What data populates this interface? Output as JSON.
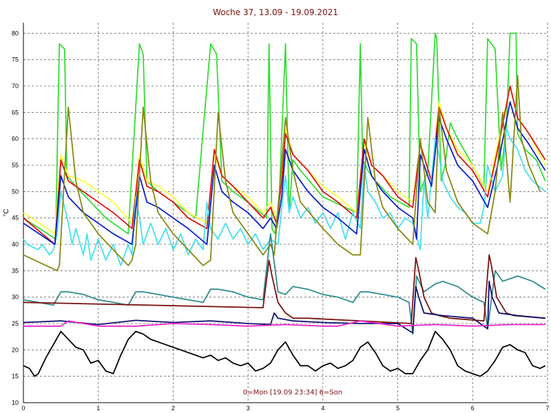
{
  "chart_data": {
    "type": "line",
    "title": "Woche 37, 13.09 - 19.09.2021",
    "ylabel": "°C",
    "footer": "0=Mon [19.09 23:34] 6=Son",
    "xlim": [
      0,
      7
    ],
    "ylim": [
      10,
      82
    ],
    "x_ticks": [
      "0",
      "1",
      "2",
      "3",
      "4",
      "5",
      "6",
      "7"
    ],
    "y_ticks": [
      "10",
      "15",
      "20",
      "25",
      "30",
      "35",
      "40",
      "45",
      "50",
      "55",
      "60",
      "65",
      "70",
      "75",
      "80"
    ],
    "grid": true,
    "series": [
      {
        "color": "#33dd33",
        "x": [
          0,
          0.43,
          0.48,
          0.55,
          0.58,
          0.7,
          0.9,
          1.1,
          1.4,
          1.55,
          1.6,
          1.65,
          1.8,
          2.0,
          2.3,
          2.5,
          2.58,
          2.65,
          2.8,
          3.0,
          3.25,
          3.28,
          3.32,
          3.36,
          3.42,
          3.5,
          3.55,
          3.6,
          3.7,
          4.0,
          4.45,
          4.5,
          4.53,
          4.6,
          4.7,
          4.9,
          5.15,
          5.18,
          5.25,
          5.3,
          5.4,
          5.5,
          5.52,
          5.58,
          5.63,
          5.7,
          5.8,
          6.0,
          6.15,
          6.2,
          6.3,
          6.38,
          6.45,
          6.5,
          6.58,
          6.6,
          6.7,
          6.85,
          6.97
        ],
        "values": [
          45,
          41,
          78,
          77,
          53,
          51,
          48,
          45,
          42,
          78,
          76,
          52,
          50,
          48,
          45,
          78,
          76,
          52,
          50,
          48,
          45,
          78,
          43,
          42,
          50,
          78,
          46,
          56,
          54,
          49,
          46,
          78,
          56,
          54,
          52,
          49,
          47,
          79,
          78,
          50,
          54,
          80,
          79,
          52,
          55,
          63,
          60,
          55,
          51,
          79,
          77,
          54,
          62,
          80,
          80,
          61,
          58,
          56,
          52
        ]
      },
      {
        "color": "#ffff33",
        "x": [
          0,
          0.42,
          0.5,
          0.6,
          0.8,
          1.0,
          1.2,
          1.45,
          1.55,
          1.65,
          1.8,
          2.0,
          2.2,
          2.45,
          2.55,
          2.65,
          2.8,
          3.0,
          3.2,
          3.3,
          3.38,
          3.45,
          3.5,
          3.6,
          3.8,
          4.0,
          4.2,
          4.45,
          4.55,
          4.65,
          4.8,
          5.0,
          5.2,
          5.3,
          5.45,
          5.55,
          5.65,
          5.8,
          6.0,
          6.2,
          6.35,
          6.5,
          6.6,
          6.75,
          6.97
        ],
        "values": [
          46,
          42,
          57,
          53,
          52,
          50,
          48,
          44,
          57,
          52,
          51,
          49,
          46,
          44,
          57,
          53,
          51,
          49,
          46,
          48,
          45,
          52,
          62,
          57,
          54,
          51,
          49,
          46,
          59,
          55,
          53,
          50,
          48,
          59,
          52,
          67,
          62,
          58,
          55,
          50,
          60,
          70,
          64,
          61,
          55
        ]
      },
      {
        "color": "#dd1111",
        "x": [
          0,
          0.42,
          0.5,
          0.6,
          0.8,
          1.0,
          1.2,
          1.45,
          1.55,
          1.65,
          1.8,
          2.0,
          2.2,
          2.45,
          2.55,
          2.65,
          2.8,
          3.0,
          3.2,
          3.3,
          3.38,
          3.45,
          3.5,
          3.6,
          3.8,
          4.0,
          4.2,
          4.45,
          4.55,
          4.65,
          4.8,
          5.0,
          5.2,
          5.3,
          5.45,
          5.55,
          5.65,
          5.8,
          6.0,
          6.2,
          6.35,
          6.5,
          6.6,
          6.75,
          6.97
        ],
        "values": [
          45,
          40,
          56,
          52,
          50,
          48,
          46,
          43,
          56,
          51,
          50,
          48,
          45,
          43,
          58,
          53,
          51,
          48,
          45,
          47,
          44,
          52,
          61,
          57,
          54,
          50,
          48,
          45,
          60,
          55,
          53,
          49,
          47,
          59,
          52,
          66,
          62,
          57,
          54,
          49,
          59,
          70,
          64,
          61,
          56
        ]
      },
      {
        "color": "#44e0f0",
        "x": [
          0,
          0.05,
          0.2,
          0.25,
          0.35,
          0.4,
          0.45,
          0.5,
          0.6,
          0.65,
          0.7,
          0.8,
          0.85,
          0.9,
          1.0,
          1.1,
          1.2,
          1.3,
          1.4,
          1.45,
          1.5,
          1.55,
          1.6,
          1.7,
          1.8,
          1.9,
          2.0,
          2.1,
          2.2,
          2.3,
          2.4,
          2.45,
          2.5,
          2.6,
          2.7,
          2.8,
          2.9,
          3.0,
          3.1,
          3.2,
          3.3,
          3.4,
          3.45,
          3.5,
          3.55,
          3.6,
          3.7,
          3.8,
          3.9,
          4.0,
          4.1,
          4.2,
          4.3,
          4.4,
          4.5,
          4.55,
          4.6,
          4.7,
          4.8,
          4.9,
          5.0,
          5.1,
          5.2,
          5.3,
          5.35,
          5.4,
          5.5,
          5.55,
          5.6,
          5.7,
          5.8,
          5.9,
          6.0,
          6.1,
          6.15,
          6.2,
          6.3,
          6.4,
          6.45,
          6.5,
          6.6,
          6.7,
          6.8,
          6.97
        ],
        "values": [
          41,
          40,
          39,
          40,
          38,
          39,
          42,
          50,
          44,
          40,
          43,
          38,
          42,
          37,
          41,
          37,
          40,
          36,
          40,
          38,
          49,
          45,
          40,
          44,
          40,
          43,
          39,
          42,
          38,
          41,
          39,
          48,
          43,
          41,
          44,
          41,
          43,
          40,
          42,
          39,
          41,
          40,
          47,
          53,
          46,
          49,
          45,
          47,
          44,
          46,
          43,
          46,
          41,
          46,
          43,
          55,
          50,
          48,
          45,
          46,
          43,
          45,
          44,
          39,
          52,
          45,
          60,
          57,
          52,
          49,
          47,
          46,
          44,
          44,
          47,
          55,
          50,
          53,
          62,
          60,
          58,
          54,
          52,
          50
        ]
      },
      {
        "color": "#0a1fcc",
        "x": [
          0,
          0.42,
          0.5,
          0.6,
          0.8,
          1.0,
          1.2,
          1.45,
          1.55,
          1.65,
          1.8,
          2.0,
          2.2,
          2.45,
          2.55,
          2.65,
          2.8,
          3.0,
          3.2,
          3.3,
          3.38,
          3.45,
          3.5,
          3.6,
          3.8,
          4.0,
          4.2,
          4.45,
          4.55,
          4.65,
          4.8,
          5.0,
          5.2,
          5.25,
          5.3,
          5.45,
          5.55,
          5.65,
          5.8,
          6.0,
          6.2,
          6.35,
          6.5,
          6.6,
          6.75,
          6.97
        ],
        "values": [
          44,
          40,
          53,
          49,
          46,
          44,
          42,
          40,
          53,
          48,
          47,
          45,
          43,
          40,
          55,
          50,
          48,
          46,
          43,
          45,
          43,
          49,
          58,
          54,
          50,
          47,
          45,
          42,
          58,
          53,
          50,
          47,
          45,
          41,
          57,
          51,
          64,
          60,
          55,
          52,
          47,
          56,
          67,
          62,
          59,
          54
        ]
      },
      {
        "color": "#888811",
        "x": [
          0,
          0.45,
          0.48,
          0.6,
          0.7,
          0.8,
          1.0,
          1.2,
          1.4,
          1.45,
          1.5,
          1.6,
          1.7,
          1.8,
          2.0,
          2.2,
          2.4,
          2.5,
          2.6,
          2.7,
          2.8,
          3.0,
          3.2,
          3.3,
          3.35,
          3.5,
          3.6,
          3.7,
          4.0,
          4.2,
          4.4,
          4.5,
          4.6,
          4.7,
          4.8,
          5.0,
          5.2,
          5.3,
          5.4,
          5.5,
          5.55,
          5.65,
          5.8,
          6.0,
          6.2,
          6.3,
          6.4,
          6.5,
          6.6,
          6.65,
          6.75,
          6.9
        ],
        "values": [
          38,
          35,
          36,
          66,
          52,
          46,
          42,
          39,
          36,
          37,
          40,
          66,
          52,
          46,
          42,
          39,
          36,
          37,
          65,
          52,
          46,
          42,
          38,
          40,
          38,
          64,
          54,
          48,
          43,
          40,
          38,
          38,
          64,
          52,
          47,
          43,
          40,
          60,
          48,
          46,
          66,
          54,
          48,
          44,
          42,
          50,
          65,
          48,
          72,
          60,
          55,
          50
        ]
      },
      {
        "color": "#2e8b8b",
        "x": [
          0,
          0.2,
          0.4,
          0.5,
          0.6,
          0.8,
          1.0,
          1.2,
          1.4,
          1.5,
          1.6,
          1.8,
          2.0,
          2.2,
          2.4,
          2.5,
          2.6,
          2.8,
          3.0,
          3.2,
          3.3,
          3.4,
          3.5,
          3.6,
          3.8,
          4.0,
          4.2,
          4.4,
          4.5,
          4.6,
          4.8,
          5.0,
          5.15,
          5.2,
          5.25,
          5.35,
          5.5,
          5.6,
          5.8,
          6.0,
          6.15,
          6.2,
          6.3,
          6.4,
          6.6,
          6.8,
          6.97
        ],
        "values": [
          29.5,
          29,
          28.5,
          31,
          31,
          30.5,
          29.5,
          29,
          28.5,
          31,
          31,
          30.5,
          30,
          29.5,
          29,
          31.5,
          31.5,
          31,
          30,
          29.5,
          42,
          31,
          30.5,
          32,
          31.5,
          30.5,
          30,
          29,
          31,
          31,
          30.5,
          30,
          29,
          23,
          34,
          31,
          32.5,
          33,
          32,
          30,
          29,
          24,
          35,
          33,
          34,
          33,
          31.5
        ]
      },
      {
        "color": "#7a1010",
        "x": [
          0,
          3.2,
          3.28,
          3.32,
          3.4,
          3.5,
          3.6,
          3.8,
          4.5,
          5.18,
          5.24,
          5.28,
          5.35,
          5.45,
          5.55,
          5.7,
          6.15,
          6.22,
          6.25,
          6.32,
          6.45,
          6.55,
          6.97
        ],
        "values": [
          29,
          28,
          37,
          34,
          29,
          27,
          26,
          26,
          25.5,
          25,
          37.5,
          35,
          30,
          27,
          26.5,
          26,
          25.5,
          38,
          36,
          30,
          27,
          26.5,
          26
        ]
      },
      {
        "color": "#101070",
        "x": [
          0,
          0.5,
          1.0,
          1.5,
          2.0,
          2.5,
          3.0,
          3.3,
          3.35,
          3.4,
          3.6,
          4.0,
          4.5,
          5.0,
          5.2,
          5.24,
          5.28,
          5.35,
          5.6,
          6.0,
          6.2,
          6.22,
          6.26,
          6.35,
          6.6,
          6.97
        ],
        "values": [
          25.2,
          25.5,
          24.8,
          25.6,
          25.2,
          25.5,
          25,
          24.8,
          27,
          26,
          25.5,
          25.2,
          25,
          25,
          23.2,
          32,
          30,
          27,
          26.5,
          26,
          24,
          33,
          30,
          27,
          26.5,
          26
        ]
      },
      {
        "color": "#ee22cc",
        "x": [
          0,
          0.5,
          0.6,
          0.8,
          1.0,
          1.5,
          2.0,
          2.5,
          3.0,
          3.5,
          4.0,
          4.2,
          4.5,
          5.0,
          5.5,
          6.0,
          6.5,
          6.97
        ],
        "values": [
          24.5,
          24.5,
          25.5,
          25,
          24.5,
          24.5,
          25,
          24.8,
          24.5,
          24.8,
          24.5,
          24.5,
          25.5,
          24.5,
          24.8,
          24.5,
          24.8,
          24.8
        ]
      },
      {
        "color": "#000000",
        "x": [
          0,
          0.08,
          0.15,
          0.2,
          0.3,
          0.4,
          0.5,
          0.6,
          0.7,
          0.8,
          0.9,
          1.0,
          1.1,
          1.2,
          1.3,
          1.4,
          1.5,
          1.6,
          1.7,
          1.8,
          1.9,
          2.0,
          2.1,
          2.2,
          2.3,
          2.4,
          2.5,
          2.6,
          2.7,
          2.8,
          2.9,
          3.0,
          3.1,
          3.2,
          3.3,
          3.4,
          3.5,
          3.6,
          3.7,
          3.8,
          3.9,
          4.0,
          4.1,
          4.2,
          4.3,
          4.4,
          4.5,
          4.6,
          4.7,
          4.8,
          4.9,
          5.0,
          5.1,
          5.2,
          5.3,
          5.4,
          5.5,
          5.6,
          5.7,
          5.8,
          5.9,
          6.0,
          6.1,
          6.2,
          6.3,
          6.4,
          6.5,
          6.6,
          6.7,
          6.8,
          6.9,
          6.97
        ],
        "values": [
          17,
          16.5,
          15,
          15.5,
          18.5,
          21,
          23.5,
          22,
          20.5,
          20,
          17.5,
          18,
          16,
          15.5,
          19,
          22,
          23.5,
          23,
          22,
          21.5,
          21,
          20.5,
          20,
          19.5,
          19,
          18.5,
          19,
          18,
          18.5,
          17.5,
          17,
          17.5,
          16,
          16.5,
          17.5,
          20,
          21.5,
          19,
          17,
          17,
          16,
          17,
          17.5,
          16.5,
          17,
          18,
          20.5,
          21.5,
          19.5,
          17,
          16,
          16.5,
          15.5,
          15.5,
          18,
          20,
          23.5,
          22,
          20,
          17,
          16,
          15.5,
          15,
          16,
          18,
          20.5,
          21,
          20,
          19.5,
          17,
          16.5,
          17
        ]
      }
    ]
  }
}
